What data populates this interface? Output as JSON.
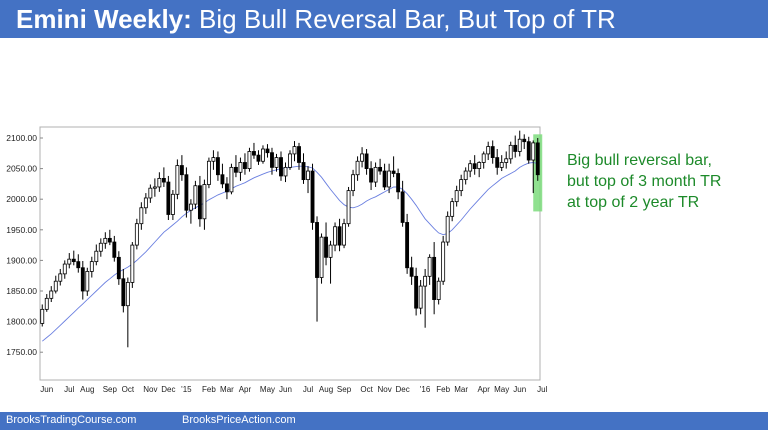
{
  "header": {
    "title_bold": "Emini Weekly:",
    "title_rest": "Big Bull Reversal Bar, But Top of TR"
  },
  "annotation": {
    "lines": [
      "Big bull reversal bar,",
      "but top of 3 month TR",
      "at top of 2 year TR"
    ]
  },
  "footer": {
    "left": "BrooksTradingCourse.com",
    "right": "BrooksPriceAction.com"
  },
  "colors": {
    "title_bar": "#4472c4",
    "annotation": "#1d8a2a",
    "moving_average": "#6a7fe0",
    "bull_body": "#ffffff",
    "bear_body": "#000000",
    "highlight": "#7ddc7d"
  },
  "chart_data": {
    "type": "candlestick",
    "title": "",
    "xlabel": "",
    "ylabel": "",
    "ylim": [
      1740,
      2115
    ],
    "y_ticks": [
      "2100.00",
      "2050.00",
      "2000.00",
      "1950.00",
      "1900.00",
      "1850.00",
      "1800.00",
      "1750.00"
    ],
    "x_ticks": [
      {
        "label": "Jun",
        "bar": 1
      },
      {
        "label": "Jul",
        "bar": 6
      },
      {
        "label": "Aug",
        "bar": 10
      },
      {
        "label": "Sep",
        "bar": 15
      },
      {
        "label": "Oct",
        "bar": 19
      },
      {
        "label": "Nov",
        "bar": 24
      },
      {
        "label": "Dec",
        "bar": 28
      },
      {
        "label": "'15",
        "bar": 32
      },
      {
        "label": "Feb",
        "bar": 37
      },
      {
        "label": "Mar",
        "bar": 41
      },
      {
        "label": "Apr",
        "bar": 45
      },
      {
        "label": "May",
        "bar": 50
      },
      {
        "label": "Jun",
        "bar": 54
      },
      {
        "label": "Jul",
        "bar": 59
      },
      {
        "label": "Aug",
        "bar": 63
      },
      {
        "label": "Sep",
        "bar": 67
      },
      {
        "label": "Oct",
        "bar": 72
      },
      {
        "label": "Nov",
        "bar": 76
      },
      {
        "label": "Dec",
        "bar": 80
      },
      {
        "label": "'16",
        "bar": 85
      },
      {
        "label": "Feb",
        "bar": 89
      },
      {
        "label": "Mar",
        "bar": 93
      },
      {
        "label": "Apr",
        "bar": 98
      },
      {
        "label": "May",
        "bar": 102
      },
      {
        "label": "Jun",
        "bar": 106
      },
      {
        "label": "Jul",
        "bar": 111
      }
    ],
    "highlight_bar": 110,
    "grid": false,
    "legend": "none",
    "ohlc": [
      [
        1797,
        1828,
        1792,
        1820
      ],
      [
        1820,
        1845,
        1816,
        1838
      ],
      [
        1838,
        1858,
        1832,
        1850
      ],
      [
        1850,
        1875,
        1846,
        1866
      ],
      [
        1866,
        1886,
        1859,
        1878
      ],
      [
        1878,
        1900,
        1870,
        1894
      ],
      [
        1894,
        1912,
        1887,
        1902
      ],
      [
        1902,
        1916,
        1892,
        1898
      ],
      [
        1898,
        1910,
        1880,
        1888
      ],
      [
        1888,
        1899,
        1836,
        1850
      ],
      [
        1850,
        1888,
        1842,
        1882
      ],
      [
        1882,
        1906,
        1872,
        1898
      ],
      [
        1898,
        1926,
        1892,
        1915
      ],
      [
        1915,
        1936,
        1906,
        1928
      ],
      [
        1928,
        1946,
        1919,
        1936
      ],
      [
        1936,
        1950,
        1925,
        1930
      ],
      [
        1930,
        1940,
        1898,
        1905
      ],
      [
        1905,
        1915,
        1860,
        1870
      ],
      [
        1870,
        1886,
        1815,
        1826
      ],
      [
        1826,
        1872,
        1758,
        1864
      ],
      [
        1864,
        1930,
        1855,
        1925
      ],
      [
        1925,
        1968,
        1918,
        1960
      ],
      [
        1960,
        1995,
        1950,
        1986
      ],
      [
        1986,
        2010,
        1976,
        2002
      ],
      [
        2002,
        2024,
        1994,
        2018
      ],
      [
        2018,
        2034,
        2004,
        2020
      ],
      [
        2020,
        2044,
        2012,
        2034
      ],
      [
        2034,
        2052,
        2020,
        2028
      ],
      [
        2028,
        2038,
        1966,
        1975
      ],
      [
        1975,
        2015,
        1966,
        2008
      ],
      [
        2008,
        2065,
        2000,
        2055
      ],
      [
        2055,
        2072,
        2030,
        2040
      ],
      [
        2040,
        2052,
        1970,
        1982
      ],
      [
        1982,
        2000,
        1960,
        1992
      ],
      [
        1992,
        2030,
        1984,
        2022
      ],
      [
        2022,
        2038,
        1955,
        1968
      ],
      [
        1968,
        2032,
        1950,
        2024
      ],
      [
        2024,
        2068,
        2018,
        2062
      ],
      [
        2062,
        2080,
        2048,
        2068
      ],
      [
        2068,
        2078,
        2030,
        2040
      ],
      [
        2040,
        2058,
        2018,
        2025
      ],
      [
        2025,
        2036,
        2000,
        2012
      ],
      [
        2012,
        2058,
        2008,
        2052
      ],
      [
        2052,
        2072,
        2036,
        2044
      ],
      [
        2044,
        2068,
        2030,
        2060
      ],
      [
        2060,
        2075,
        2040,
        2050
      ],
      [
        2050,
        2084,
        2045,
        2078
      ],
      [
        2078,
        2092,
        2066,
        2072
      ],
      [
        2072,
        2080,
        2056,
        2062
      ],
      [
        2062,
        2088,
        2058,
        2082
      ],
      [
        2082,
        2090,
        2068,
        2076
      ],
      [
        2076,
        2084,
        2040,
        2052
      ],
      [
        2052,
        2074,
        2045,
        2068
      ],
      [
        2068,
        2078,
        2030,
        2038
      ],
      [
        2038,
        2060,
        2028,
        2052
      ],
      [
        2052,
        2080,
        2048,
        2074
      ],
      [
        2074,
        2095,
        2062,
        2086
      ],
      [
        2086,
        2092,
        2048,
        2060
      ],
      [
        2060,
        2075,
        2025,
        2032
      ],
      [
        2032,
        2054,
        2010,
        2046
      ],
      [
        2046,
        2058,
        1950,
        1962
      ],
      [
        1962,
        1972,
        1800,
        1872
      ],
      [
        1872,
        1944,
        1862,
        1938
      ],
      [
        1938,
        1962,
        1892,
        1905
      ],
      [
        1905,
        1932,
        1862,
        1925
      ],
      [
        1925,
        1962,
        1915,
        1955
      ],
      [
        1955,
        1968,
        1915,
        1925
      ],
      [
        1925,
        1968,
        1920,
        1960
      ],
      [
        1960,
        2020,
        1955,
        2014
      ],
      [
        2014,
        2048,
        2005,
        2040
      ],
      [
        2040,
        2070,
        2030,
        2062
      ],
      [
        2062,
        2085,
        2052,
        2074
      ],
      [
        2074,
        2082,
        2040,
        2050
      ],
      [
        2050,
        2062,
        2015,
        2028
      ],
      [
        2028,
        2060,
        2020,
        2052
      ],
      [
        2052,
        2066,
        2040,
        2046
      ],
      [
        2046,
        2058,
        2015,
        2020
      ],
      [
        2020,
        2058,
        2010,
        2046
      ],
      [
        2046,
        2070,
        2036,
        2042
      ],
      [
        2042,
        2050,
        2000,
        2012
      ],
      [
        2012,
        2030,
        1955,
        1962
      ],
      [
        1962,
        1976,
        1878,
        1888
      ],
      [
        1888,
        1906,
        1860,
        1874
      ],
      [
        1874,
        1888,
        1810,
        1822
      ],
      [
        1822,
        1868,
        1812,
        1858
      ],
      [
        1858,
        1886,
        1790,
        1874
      ],
      [
        1874,
        1910,
        1860,
        1905
      ],
      [
        1905,
        1930,
        1812,
        1836
      ],
      [
        1836,
        1872,
        1828,
        1866
      ],
      [
        1866,
        1940,
        1860,
        1930
      ],
      [
        1930,
        1980,
        1924,
        1972
      ],
      [
        1972,
        2002,
        1964,
        1996
      ],
      [
        1996,
        2022,
        1988,
        2014
      ],
      [
        2014,
        2040,
        2005,
        2032
      ],
      [
        2032,
        2052,
        2024,
        2046
      ],
      [
        2046,
        2064,
        2036,
        2058
      ],
      [
        2058,
        2072,
        2040,
        2050
      ],
      [
        2050,
        2062,
        2036,
        2060
      ],
      [
        2060,
        2078,
        2050,
        2074
      ],
      [
        2074,
        2094,
        2064,
        2086
      ],
      [
        2086,
        2096,
        2058,
        2068
      ],
      [
        2068,
        2082,
        2040,
        2052
      ],
      [
        2052,
        2072,
        2046,
        2060
      ],
      [
        2060,
        2078,
        2050,
        2066
      ],
      [
        2066,
        2094,
        2058,
        2088
      ],
      [
        2088,
        2104,
        2068,
        2078
      ],
      [
        2078,
        2112,
        2070,
        2098
      ],
      [
        2098,
        2106,
        2082,
        2094
      ],
      [
        2094,
        2102,
        2058,
        2064
      ],
      [
        2064,
        2096,
        2010,
        2092
      ],
      [
        2092,
        2100,
        2030,
        2040
      ]
    ],
    "ma_20": [
      1768,
      1774,
      1780,
      1787,
      1794,
      1801,
      1808,
      1815,
      1822,
      1829,
      1836,
      1843,
      1850,
      1857,
      1864,
      1870,
      1876,
      1881,
      1885,
      1889,
      1894,
      1900,
      1907,
      1914,
      1922,
      1930,
      1938,
      1946,
      1952,
      1958,
      1964,
      1971,
      1977,
      1982,
      1986,
      1990,
      1994,
      1999,
      2003,
      2007,
      2010,
      2013,
      2017,
      2021,
      2024,
      2027,
      2031,
      2035,
      2038,
      2041,
      2044,
      2046,
      2048,
      2050,
      2051,
      2052,
      2053,
      2054,
      2054,
      2053,
      2051,
      2044,
      2036,
      2026,
      2016,
      2007,
      1998,
      1991,
      1987,
      1986,
      1988,
      1992,
      1997,
      2001,
      2004,
      2008,
      2012,
      2016,
      2020,
      2020,
      2016,
      2009,
      2000,
      1990,
      1979,
      1968,
      1960,
      1952,
      1945,
      1942,
      1944,
      1950,
      1958,
      1966,
      1975,
      1984,
      1992,
      2000,
      2008,
      2016,
      2022,
      2028,
      2034,
      2038,
      2042,
      2046,
      2052,
      2056,
      2059,
      2060,
      2058
    ]
  }
}
